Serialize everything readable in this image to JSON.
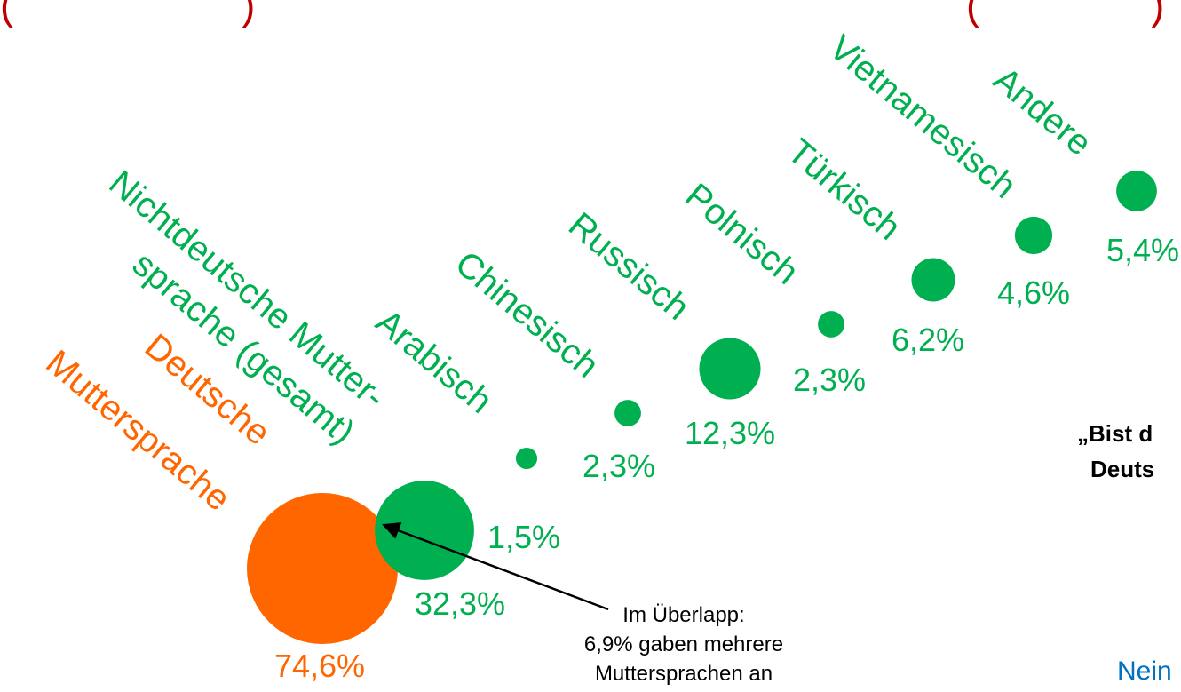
{
  "chart_data": {
    "type": "bubble",
    "categories": [
      [
        "Deutsche",
        "Muttersprache"
      ],
      [
        "Nichtdeutsche Mutter-",
        "sprache (gesamt)"
      ],
      "Arabisch",
      "Chinesisch",
      "Russisch",
      "Polnisch",
      "Türkisch",
      "Vietnamesisch",
      "Andere"
    ],
    "values": [
      74.6,
      32.3,
      1.5,
      2.3,
      12.3,
      2.3,
      6.2,
      4.6,
      5.4
    ],
    "value_labels": [
      "74,6%",
      "32,3%",
      "1,5%",
      "2,3%",
      "12,3%",
      "2,3%",
      "6,2%",
      "4,6%",
      "5,4%"
    ],
    "colors": [
      "#ff6600",
      "#00b050",
      "#00b050",
      "#00b050",
      "#00b050",
      "#00b050",
      "#00b050",
      "#00b050",
      "#00b050"
    ],
    "annotation": [
      "Im Überlapp:",
      "6,9% gaben mehrere",
      "Muttersprachen an"
    ],
    "fragments": [
      "(",
      ")",
      "(",
      ")",
      "„Bist d",
      "Deuts",
      "Nein"
    ]
  }
}
